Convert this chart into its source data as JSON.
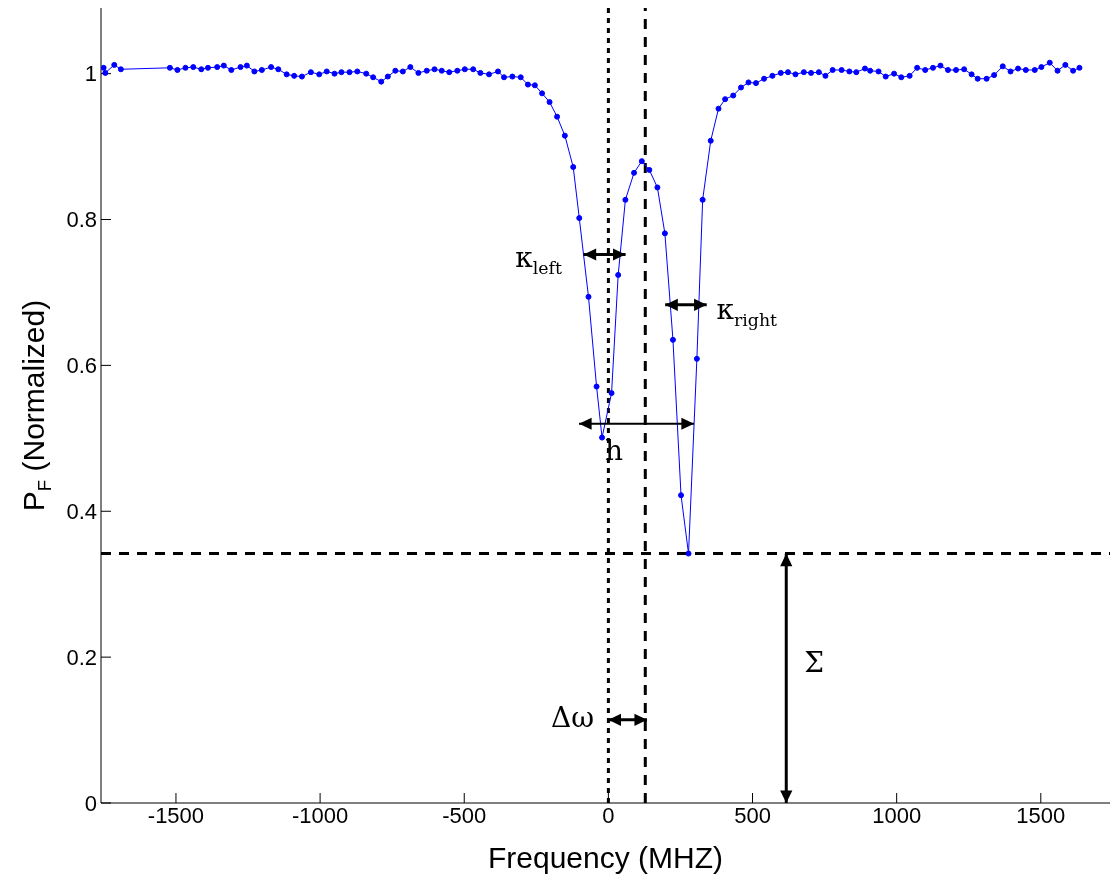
{
  "chart_data": {
    "type": "line",
    "xlabel": "Frequency (MHZ)",
    "ylabel": "P$_{F}$ (Normalized)",
    "x": [
      -1751,
      -1745,
      -1714,
      -1691,
      -1521,
      -1495,
      -1467,
      -1440,
      -1412,
      -1389,
      -1357,
      -1334,
      -1308,
      -1276,
      -1254,
      -1228,
      -1202,
      -1170,
      -1145,
      -1116,
      -1090,
      -1063,
      -1032,
      -1003,
      -977,
      -950,
      -926,
      -898,
      -871,
      -840,
      -816,
      -788,
      -765,
      -739,
      -713,
      -687,
      -659,
      -630,
      -603,
      -578,
      -552,
      -524,
      -498,
      -469,
      -444,
      -414,
      -383,
      -362,
      -333,
      -304,
      -279,
      -255,
      -230,
      -204,
      -178,
      -151,
      -122,
      -101,
      -69,
      -41,
      -22,
      11,
      34,
      59,
      89,
      116,
      142,
      170,
      196,
      224,
      252,
      278,
      307,
      327,
      355,
      382,
      405,
      433,
      460,
      486,
      512,
      540,
      569,
      598,
      623,
      649,
      678,
      703,
      730,
      753,
      778,
      809,
      836,
      860,
      890,
      908,
      937,
      962,
      991,
      1016,
      1045,
      1071,
      1099,
      1126,
      1152,
      1178,
      1206,
      1234,
      1260,
      1281,
      1312,
      1338,
      1368,
      1395,
      1421,
      1448,
      1479,
      1502,
      1531,
      1558,
      1585,
      1612,
      1634
    ],
    "series": [
      {
        "color": "#0000ff",
        "values": [
          1.008,
          1.001,
          1.012,
          1.006,
          1.008,
          1.005,
          1.008,
          1.009,
          1.006,
          1.008,
          1.009,
          1.011,
          1.005,
          1.009,
          1.011,
          1.003,
          1.005,
          1.009,
          1.006,
          0.999,
          0.997,
          0.996,
          1.002,
          0.999,
          1.003,
          1.0,
          1.002,
          1.002,
          1.003,
          1.0,
          0.995,
          0.989,
          0.996,
          1.004,
          1.003,
          1.009,
          1.001,
          1.004,
          1.006,
          1.004,
          1.002,
          1.004,
          1.006,
          1.006,
          1.001,
          0.999,
          1.003,
          0.995,
          0.996,
          0.995,
          0.985,
          0.984,
          0.973,
          0.961,
          0.941,
          0.915,
          0.872,
          0.802,
          0.694,
          0.571,
          0.501,
          0.562,
          0.724,
          0.827,
          0.864,
          0.88,
          0.868,
          0.844,
          0.781,
          0.635,
          0.422,
          0.342,
          0.609,
          0.827,
          0.908,
          0.952,
          0.965,
          0.97,
          0.981,
          0.988,
          0.987,
          0.993,
          0.997,
          1.001,
          1.002,
          0.999,
          1.002,
          1.001,
          1.002,
          0.997,
          1.005,
          1.005,
          1.003,
          1.002,
          1.007,
          1.004,
          1.003,
          0.996,
          1.0,
          0.995,
          0.997,
          1.008,
          1.005,
          1.008,
          1.011,
          1.005,
          1.005,
          1.006,
          0.999,
          0.993,
          0.993,
          0.998,
          1.01,
          1.003,
          1.007,
          1.005,
          1.005,
          1.009,
          1.015,
          1.004,
          1.012,
          1.004,
          1.008
        ]
      }
    ],
    "xlim": [
      -1760,
      1740
    ],
    "ylim": [
      0,
      1.09
    ],
    "xticks": [
      -1500,
      -1000,
      -500,
      0,
      500,
      1000,
      1500
    ],
    "yticks": [
      0,
      0.2,
      0.4,
      0.6,
      0.8,
      1
    ],
    "marker": "circle",
    "line_style": "solid",
    "grid": false,
    "legend": false,
    "ref_lines": [
      {
        "axis": "x",
        "value": 0,
        "label": null,
        "color": "#000000",
        "line_style": "dotted"
      },
      {
        "axis": "x",
        "value": 128,
        "label": null,
        "color": "#000000",
        "line_style": "dashed"
      },
      {
        "axis": "y",
        "value": 0.342,
        "label": null,
        "color": "#000000",
        "line_style": "dashed"
      }
    ],
    "annotations": [
      {
        "text": "κ$_{left}$",
        "x": -86,
        "y": 0.752
      },
      "κ$_{right}$",
      {
        "text": "h",
        "x": 297,
        "y": 0.52
      },
      "Δω",
      "Σ"
    ]
  }
}
